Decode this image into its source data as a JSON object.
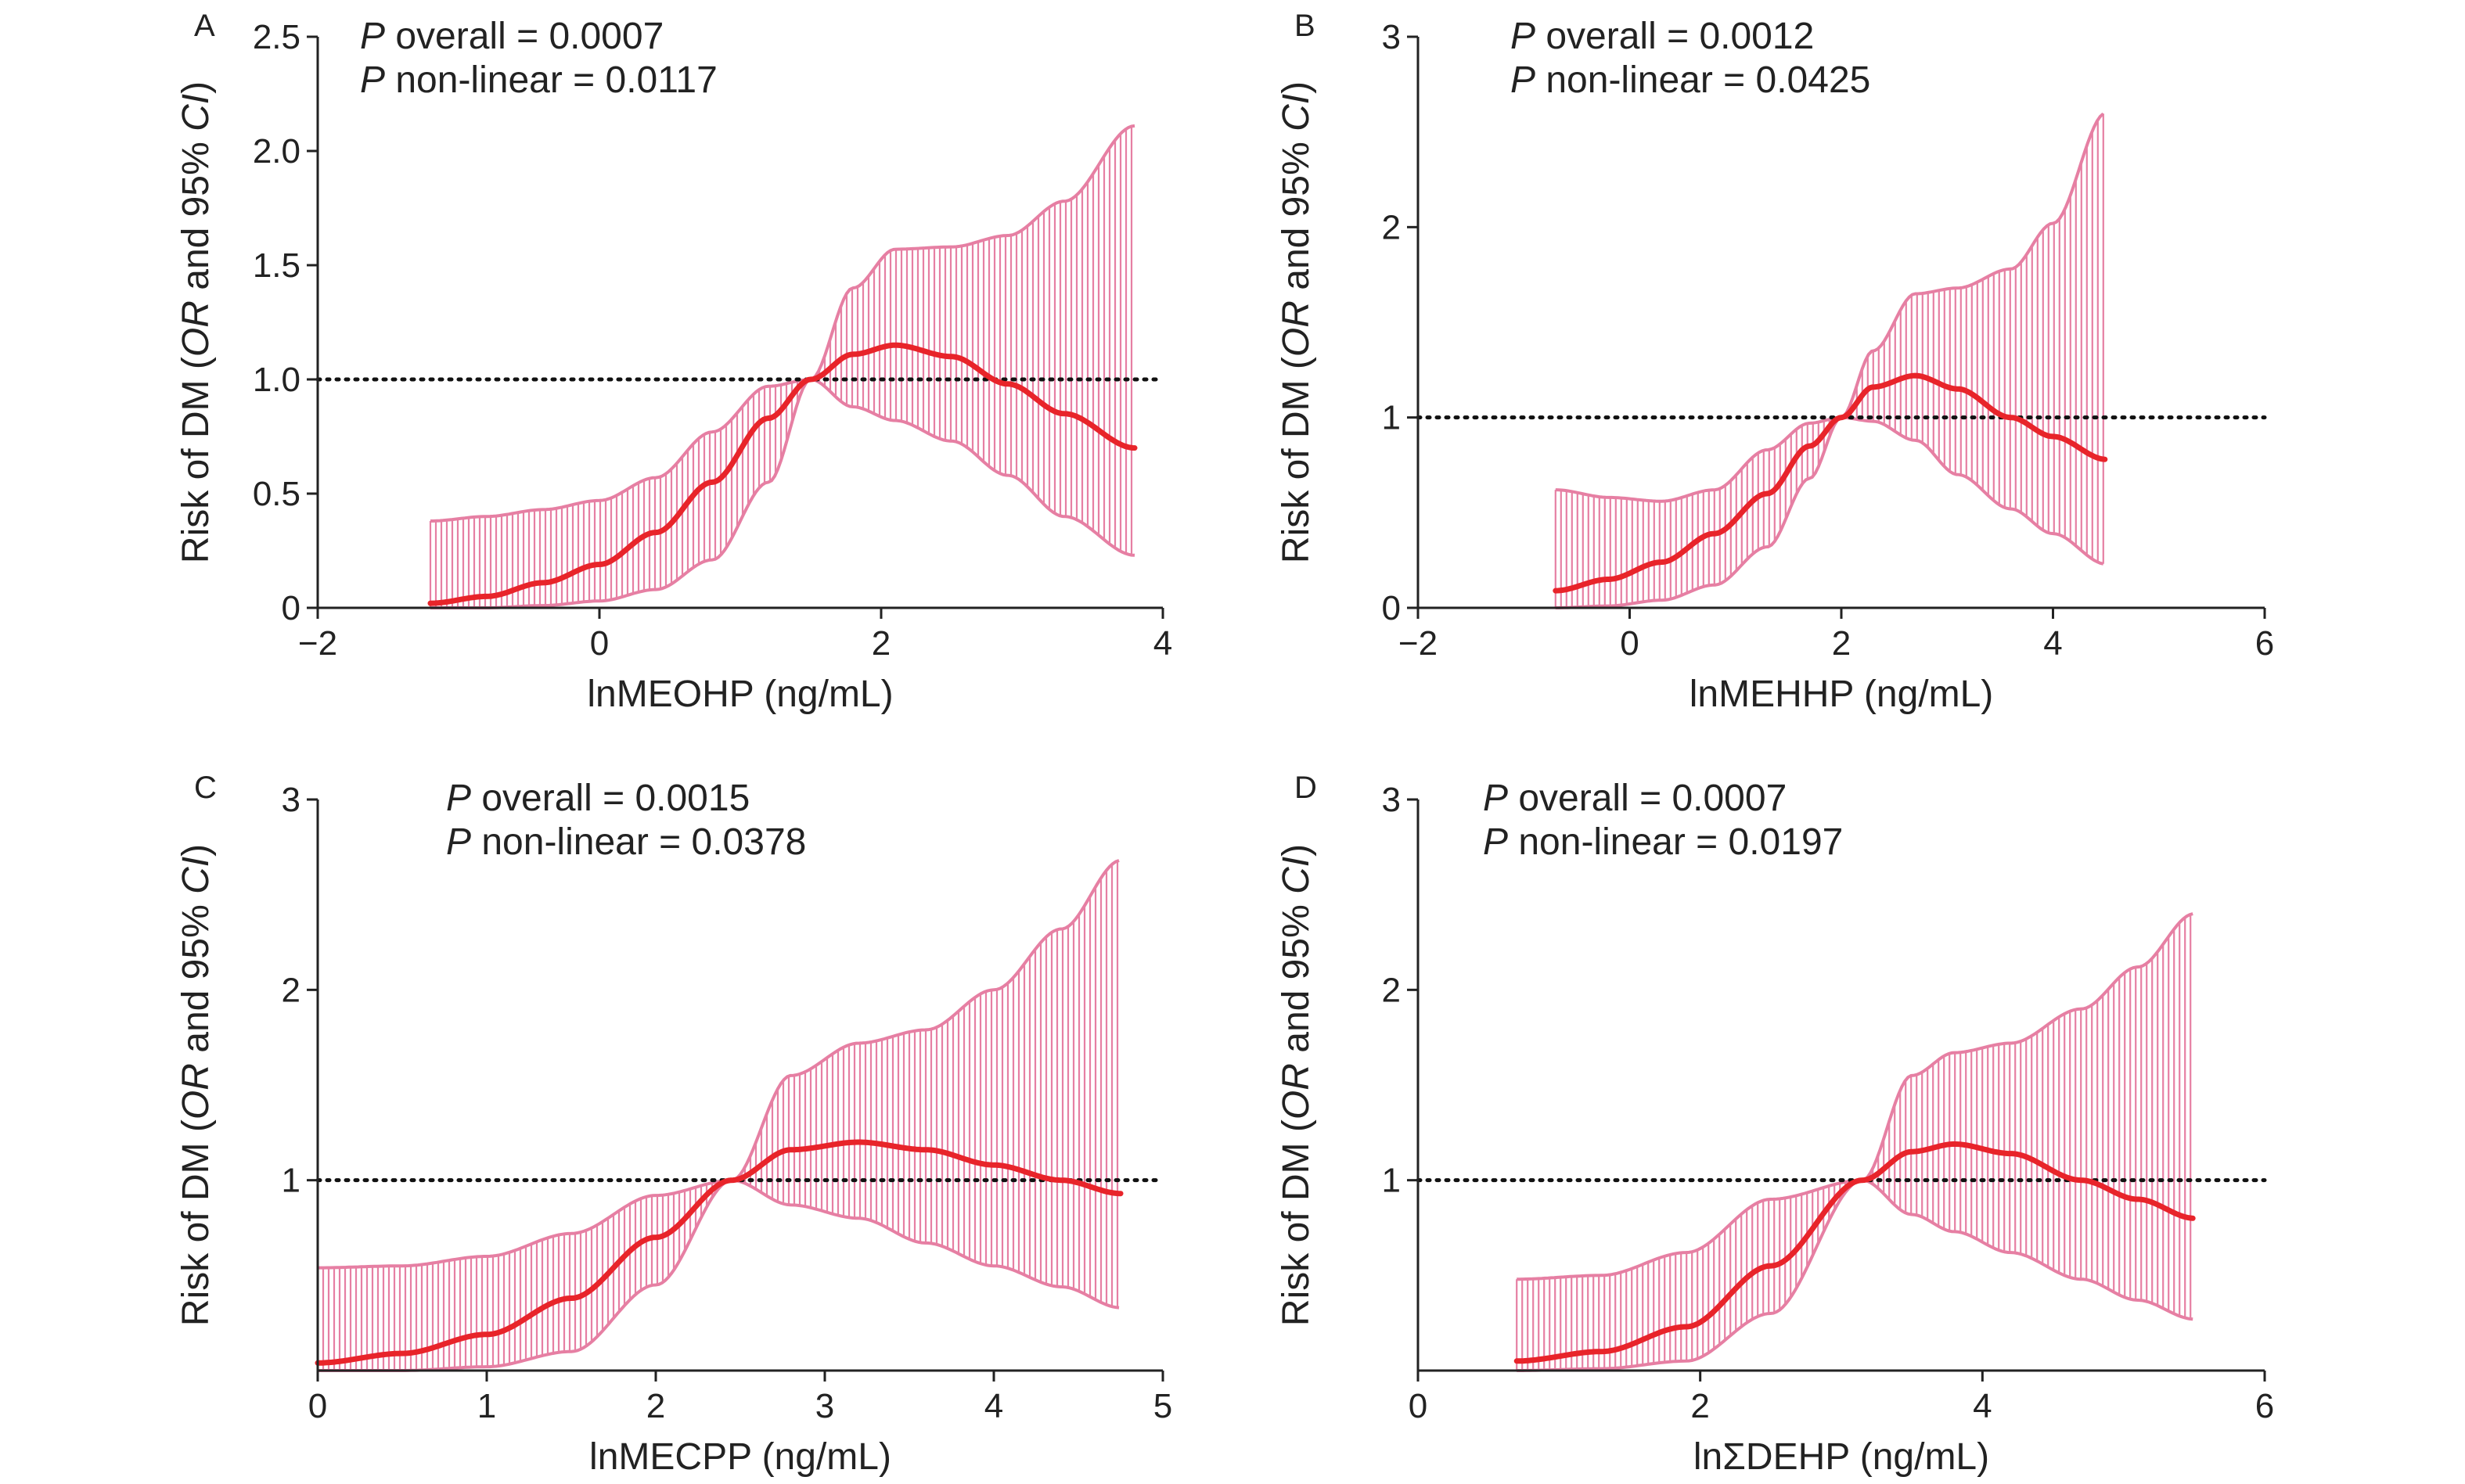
{
  "colors": {
    "curve": "#e8242a",
    "ci_band": "#e67fa3",
    "reference": "#111111",
    "axis": "#222222"
  },
  "chart_data": [
    {
      "panel": "A",
      "type": "line",
      "xlabel": "lnMEOHP (ng/mL)",
      "ylabel": "Risk of DM (OR and 95% CI)",
      "xlim": [
        -2,
        4
      ],
      "ylim": [
        0,
        2.5
      ],
      "xticks": [
        -2,
        0,
        2,
        4
      ],
      "xtick_labels": [
        "−2",
        "0",
        "2",
        "4"
      ],
      "yticks": [
        0,
        0.5,
        1.0,
        1.5,
        2.0,
        2.5
      ],
      "ytick_labels": [
        "0",
        "0.5",
        "1.0",
        "1.5",
        "2.0",
        "2.5"
      ],
      "reference_line": 1.0,
      "p_overall": "0.0007",
      "p_nonlinear": "0.0117",
      "x": [
        -1.2,
        -0.8,
        -0.4,
        0.0,
        0.4,
        0.8,
        1.2,
        1.5,
        1.8,
        2.1,
        2.5,
        2.9,
        3.3,
        3.8
      ],
      "or": [
        0.02,
        0.05,
        0.11,
        0.19,
        0.33,
        0.55,
        0.83,
        1.0,
        1.11,
        1.15,
        1.1,
        0.98,
        0.85,
        0.7
      ],
      "lower": [
        0.0,
        0.0,
        0.01,
        0.03,
        0.08,
        0.21,
        0.55,
        1.0,
        0.88,
        0.82,
        0.73,
        0.58,
        0.4,
        0.23
      ],
      "upper": [
        0.38,
        0.4,
        0.43,
        0.47,
        0.57,
        0.77,
        0.97,
        1.0,
        1.4,
        1.57,
        1.58,
        1.63,
        1.78,
        2.11
      ]
    },
    {
      "panel": "B",
      "type": "line",
      "xlabel": "lnMEHHP (ng/mL)",
      "ylabel": "Risk of DM (OR and 95% CI)",
      "xlim": [
        -2,
        6
      ],
      "ylim": [
        0,
        3
      ],
      "xticks": [
        -2,
        0,
        2,
        4,
        6
      ],
      "xtick_labels": [
        "−2",
        "0",
        "2",
        "4",
        "6"
      ],
      "yticks": [
        0,
        1,
        2,
        3
      ],
      "ytick_labels": [
        "0",
        "1",
        "2",
        "3"
      ],
      "reference_line": 1,
      "p_overall": "0.0012",
      "p_nonlinear": "0.0425",
      "x": [
        -0.7,
        -0.2,
        0.3,
        0.8,
        1.3,
        1.7,
        2.0,
        2.3,
        2.7,
        3.1,
        3.6,
        4.0,
        4.5
      ],
      "or": [
        0.09,
        0.15,
        0.24,
        0.39,
        0.6,
        0.85,
        1.0,
        1.16,
        1.22,
        1.15,
        1.0,
        0.9,
        0.78
      ],
      "lower": [
        0.0,
        0.01,
        0.04,
        0.12,
        0.32,
        0.68,
        1.0,
        0.98,
        0.88,
        0.7,
        0.52,
        0.39,
        0.23
      ],
      "upper": [
        0.62,
        0.58,
        0.56,
        0.62,
        0.83,
        0.97,
        1.0,
        1.35,
        1.65,
        1.68,
        1.78,
        2.02,
        2.6
      ]
    },
    {
      "panel": "C",
      "type": "line",
      "xlabel": "lnMECPP (ng/mL)",
      "ylabel": "Risk of DM (OR and 95% CI)",
      "xlim": [
        0,
        5
      ],
      "ylim": [
        0,
        3
      ],
      "xticks": [
        0,
        1,
        2,
        3,
        4,
        5
      ],
      "xtick_labels": [
        "0",
        "1",
        "2",
        "3",
        "4",
        "5"
      ],
      "yticks": [
        1,
        2,
        3
      ],
      "ytick_labels": [
        "1",
        "2",
        "3"
      ],
      "reference_line": 1,
      "p_overall": "0.0015",
      "p_nonlinear": "0.0378",
      "x": [
        0.0,
        0.5,
        1.0,
        1.5,
        2.0,
        2.45,
        2.8,
        3.2,
        3.6,
        4.0,
        4.4,
        4.75
      ],
      "or": [
        0.04,
        0.09,
        0.19,
        0.38,
        0.7,
        1.0,
        1.16,
        1.2,
        1.16,
        1.08,
        1.0,
        0.93
      ],
      "lower": [
        0.0,
        0.0,
        0.02,
        0.1,
        0.45,
        1.0,
        0.87,
        0.8,
        0.67,
        0.55,
        0.44,
        0.33
      ],
      "upper": [
        0.54,
        0.55,
        0.6,
        0.72,
        0.92,
        1.0,
        1.55,
        1.72,
        1.79,
        2.0,
        2.32,
        2.68
      ]
    },
    {
      "panel": "D",
      "type": "line",
      "xlabel": "lnΣDEHP (ng/mL)",
      "ylabel": "Risk of DM (OR and 95% CI)",
      "xlim": [
        0,
        6
      ],
      "ylim": [
        0,
        3
      ],
      "xticks": [
        0,
        2,
        4,
        6
      ],
      "xtick_labels": [
        "0",
        "2",
        "4",
        "6"
      ],
      "yticks": [
        1,
        2,
        3
      ],
      "ytick_labels": [
        "1",
        "2",
        "3"
      ],
      "reference_line": 1,
      "p_overall": "0.0007",
      "p_nonlinear": "0.0197",
      "x": [
        0.7,
        1.3,
        1.9,
        2.5,
        3.15,
        3.5,
        3.8,
        4.2,
        4.7,
        5.1,
        5.5
      ],
      "or": [
        0.05,
        0.1,
        0.23,
        0.55,
        1.0,
        1.15,
        1.19,
        1.14,
        1.0,
        0.9,
        0.8
      ],
      "lower": [
        0.0,
        0.01,
        0.05,
        0.3,
        1.0,
        0.82,
        0.73,
        0.62,
        0.48,
        0.37,
        0.27
      ],
      "upper": [
        0.48,
        0.5,
        0.62,
        0.9,
        1.0,
        1.55,
        1.67,
        1.72,
        1.9,
        2.12,
        2.4
      ]
    }
  ]
}
